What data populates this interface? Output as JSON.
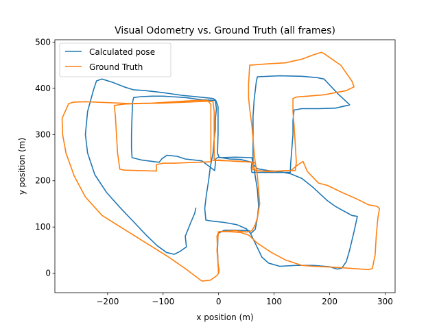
{
  "chart_data": {
    "type": "line",
    "title": "Visual Odometry vs. Ground Truth (all frames)",
    "xlabel": "x position (m)",
    "ylabel": "y position (m)",
    "xlim": [
      -295,
      318
    ],
    "ylim": [
      -42,
      505
    ],
    "xticks": [
      -200,
      -100,
      0,
      100,
      200,
      300
    ],
    "yticks": [
      0,
      100,
      200,
      300,
      400,
      500
    ],
    "grid": false,
    "legend_position": "top-left",
    "series": [
      {
        "name": "Calculated pose",
        "color": "#1f77b4",
        "points": [
          [
            -41,
            141
          ],
          [
            -43,
            130
          ],
          [
            -50,
            110
          ],
          [
            -60,
            80
          ],
          [
            -58,
            57
          ],
          [
            -70,
            47
          ],
          [
            -80,
            41
          ],
          [
            -94,
            45
          ],
          [
            -111,
            60
          ],
          [
            -130,
            82
          ],
          [
            -152,
            110
          ],
          [
            -176,
            140
          ],
          [
            -202,
            175
          ],
          [
            -223,
            213
          ],
          [
            -236,
            260
          ],
          [
            -240,
            300
          ],
          [
            -236,
            350
          ],
          [
            -225,
            398
          ],
          [
            -220,
            416
          ],
          [
            -210,
            420
          ],
          [
            -191,
            413
          ],
          [
            -170,
            403
          ],
          [
            -154,
            397
          ],
          [
            -132,
            395
          ],
          [
            -102,
            391
          ],
          [
            -67,
            385
          ],
          [
            -35,
            381
          ],
          [
            -10,
            378
          ],
          [
            -6,
            375
          ],
          [
            -4,
            356
          ],
          [
            -6,
            330
          ],
          [
            -6,
            310
          ],
          [
            -8,
            290
          ],
          [
            -10,
            260
          ],
          [
            -15,
            230
          ],
          [
            -18,
            200
          ],
          [
            -22,
            170
          ],
          [
            -25,
            140
          ],
          [
            -23,
            115
          ],
          [
            -13,
            113
          ],
          [
            10,
            110
          ],
          [
            33,
            105
          ],
          [
            50,
            96
          ],
          [
            58,
            86
          ],
          [
            66,
            95
          ],
          [
            70,
            120
          ],
          [
            72,
            145
          ],
          [
            70,
            180
          ],
          [
            66,
            210
          ],
          [
            62,
            240
          ],
          [
            62,
            260
          ],
          [
            62,
            300
          ],
          [
            62,
            340
          ],
          [
            64,
            375
          ],
          [
            68,
            415
          ],
          [
            70,
            425
          ],
          [
            110,
            427
          ],
          [
            150,
            426
          ],
          [
            178,
            423
          ],
          [
            190,
            420
          ],
          [
            215,
            388
          ],
          [
            233,
            368
          ],
          [
            236,
            364
          ],
          [
            210,
            357
          ],
          [
            180,
            356
          ],
          [
            150,
            356
          ],
          [
            136,
            353
          ],
          [
            134,
            330
          ],
          [
            134,
            300
          ],
          [
            132,
            270
          ],
          [
            130,
            240
          ],
          [
            129,
            218
          ],
          [
            110,
            218
          ],
          [
            80,
            218
          ],
          [
            60,
            218
          ],
          [
            59,
            228
          ],
          [
            60,
            240
          ],
          [
            40,
            246
          ],
          [
            20,
            247
          ],
          [
            0,
            251
          ],
          [
            -5,
            248
          ],
          [
            -7,
            222
          ],
          [
            -30,
            243
          ],
          [
            -60,
            247
          ],
          [
            -75,
            253
          ],
          [
            -93,
            255
          ],
          [
            -102,
            248
          ],
          [
            -107,
            240
          ],
          [
            -120,
            242
          ],
          [
            -139,
            245
          ],
          [
            -156,
            250
          ],
          [
            -157,
            270
          ],
          [
            -157,
            300
          ],
          [
            -156,
            340
          ],
          [
            -155,
            370
          ],
          [
            -153,
            380
          ],
          [
            -140,
            382
          ],
          [
            -120,
            383
          ],
          [
            -100,
            383
          ],
          [
            -60,
            380
          ],
          [
            -30,
            375
          ],
          [
            -5,
            374
          ],
          [
            -1,
            360
          ],
          [
            -1,
            330
          ],
          [
            -1,
            300
          ],
          [
            -2,
            260
          ],
          [
            1,
            250
          ],
          [
            30,
            251
          ],
          [
            60,
            250
          ],
          [
            62,
            236
          ],
          [
            70,
            226
          ],
          [
            90,
            222
          ],
          [
            110,
            220
          ],
          [
            130,
            215
          ],
          [
            150,
            205
          ],
          [
            170,
            186
          ],
          [
            195,
            158
          ],
          [
            210,
            145
          ],
          [
            240,
            125
          ],
          [
            250,
            123
          ],
          [
            244,
            90
          ],
          [
            236,
            50
          ],
          [
            230,
            25
          ],
          [
            222,
            11
          ],
          [
            214,
            9
          ],
          [
            200,
            14
          ],
          [
            170,
            17
          ],
          [
            140,
            17
          ],
          [
            110,
            15
          ],
          [
            90,
            22
          ],
          [
            78,
            35
          ],
          [
            68,
            60
          ],
          [
            60,
            80
          ],
          [
            55,
            92
          ],
          [
            30,
            93
          ],
          [
            10,
            93
          ],
          [
            -1,
            86
          ],
          [
            -2,
            50
          ],
          [
            -1,
            20
          ],
          [
            0,
            0
          ]
        ]
      },
      {
        "name": "Ground Truth",
        "color": "#ff7f0e",
        "points": [
          [
            0,
            0
          ],
          [
            -3,
            -5
          ],
          [
            -15,
            -15
          ],
          [
            -30,
            -17
          ],
          [
            -60,
            10
          ],
          [
            -90,
            35
          ],
          [
            -130,
            65
          ],
          [
            -170,
            95
          ],
          [
            -210,
            125
          ],
          [
            -240,
            165
          ],
          [
            -260,
            210
          ],
          [
            -275,
            260
          ],
          [
            -281,
            300
          ],
          [
            -282,
            335
          ],
          [
            -270,
            367
          ],
          [
            -262,
            370
          ],
          [
            -240,
            371
          ],
          [
            -200,
            369
          ],
          [
            -160,
            367
          ],
          [
            -120,
            368
          ],
          [
            -80,
            371
          ],
          [
            -40,
            374
          ],
          [
            -20,
            374
          ],
          [
            -14,
            365
          ],
          [
            -14,
            330
          ],
          [
            -14,
            300
          ],
          [
            -14,
            270
          ],
          [
            -14,
            241
          ],
          [
            -40,
            240
          ],
          [
            -80,
            238
          ],
          [
            -100,
            238
          ],
          [
            -112,
            235
          ],
          [
            -112,
            221
          ],
          [
            -140,
            222
          ],
          [
            -170,
            223
          ],
          [
            -178,
            225
          ],
          [
            -182,
            260
          ],
          [
            -184,
            300
          ],
          [
            -186,
            340
          ],
          [
            -188,
            363
          ],
          [
            -170,
            366
          ],
          [
            -140,
            367
          ],
          [
            -100,
            368
          ],
          [
            -60,
            370
          ],
          [
            -20,
            372
          ],
          [
            -10,
            371
          ],
          [
            -8,
            350
          ],
          [
            -8,
            310
          ],
          [
            -8,
            270
          ],
          [
            -8,
            244
          ],
          [
            20,
            243
          ],
          [
            40,
            242
          ],
          [
            60,
            240
          ],
          [
            66,
            222
          ],
          [
            80,
            221
          ],
          [
            110,
            221
          ],
          [
            130,
            222
          ],
          [
            140,
            232
          ],
          [
            152,
            242
          ],
          [
            160,
            220
          ],
          [
            180,
            195
          ],
          [
            196,
            190
          ],
          [
            220,
            176
          ],
          [
            250,
            160
          ],
          [
            270,
            148
          ],
          [
            285,
            145
          ],
          [
            290,
            140
          ],
          [
            287,
            120
          ],
          [
            284,
            80
          ],
          [
            282,
            40
          ],
          [
            277,
            10
          ],
          [
            270,
            8
          ],
          [
            245,
            10
          ],
          [
            210,
            13
          ],
          [
            170,
            15
          ],
          [
            150,
            17
          ],
          [
            120,
            29
          ],
          [
            95,
            45
          ],
          [
            70,
            65
          ],
          [
            55,
            82
          ],
          [
            40,
            88
          ],
          [
            20,
            90
          ],
          [
            0,
            90
          ],
          [
            -3,
            80
          ],
          [
            -2,
            50
          ],
          [
            -1,
            20
          ],
          [
            0,
            0
          ],
          [
            1,
            7
          ],
          [
            -1,
            20
          ],
          [
            -3,
            50
          ],
          [
            -1,
            80
          ],
          [
            0,
            90
          ],
          [
            30,
            92
          ],
          [
            50,
            89
          ],
          [
            60,
            92
          ],
          [
            66,
            105
          ],
          [
            70,
            120
          ],
          [
            74,
            150
          ],
          [
            72,
            180
          ],
          [
            70,
            210
          ],
          [
            66,
            240
          ],
          [
            64,
            260
          ],
          [
            62,
            290
          ],
          [
            60,
            320
          ],
          [
            56,
            355
          ],
          [
            54,
            380
          ],
          [
            54,
            410
          ],
          [
            56,
            450
          ],
          [
            90,
            453
          ],
          [
            120,
            455
          ],
          [
            150,
            463
          ],
          [
            170,
            472
          ],
          [
            185,
            478
          ],
          [
            190,
            475
          ],
          [
            220,
            450
          ],
          [
            240,
            416
          ],
          [
            244,
            403
          ],
          [
            230,
            395
          ],
          [
            190,
            386
          ],
          [
            160,
            383
          ],
          [
            140,
            381
          ],
          [
            134,
            378
          ],
          [
            134,
            350
          ],
          [
            136,
            320
          ],
          [
            138,
            280
          ],
          [
            140,
            240
          ],
          [
            138,
            222
          ],
          [
            120,
            222
          ],
          [
            90,
            220
          ],
          [
            70,
            222
          ],
          [
            60,
            225
          ],
          [
            64,
            240
          ],
          [
            50,
            241
          ],
          [
            30,
            242
          ],
          [
            10,
            244
          ],
          [
            0,
            245
          ],
          [
            -5,
            244
          ],
          [
            -10,
            244
          ]
        ]
      }
    ]
  }
}
